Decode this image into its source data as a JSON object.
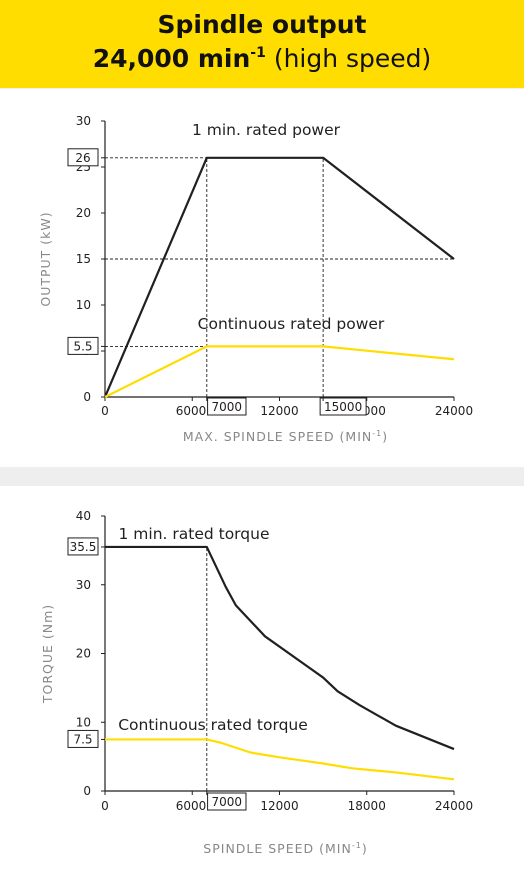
{
  "header": {
    "line1": "Spindle output",
    "line2_value": "24,000 min",
    "line2_sup": "-1",
    "line2_note": "(high speed)"
  },
  "colors": {
    "header_bg": "#ffdd00",
    "rated_line": "#231f20",
    "continuous_line": "#ffdd00",
    "axis_label": "#888888"
  },
  "chart_data": [
    {
      "type": "line",
      "xlabel": "MAX. SPINDLE SPEED (MIN",
      "xlabel_sup": "-1",
      "xlabel_close": ")",
      "ylabel": "OUTPUT (kW)",
      "xlim": [
        0,
        24000
      ],
      "ylim": [
        0,
        30
      ],
      "xticks": [
        "0",
        "6000",
        "12000",
        "18000",
        "24000"
      ],
      "xtick_values": [
        0,
        6000,
        12000,
        18000,
        24000
      ],
      "yticks": [
        "0",
        "5",
        "10",
        "15",
        "20",
        "25",
        "30"
      ],
      "ytick_values": [
        0,
        5,
        10,
        15,
        20,
        25,
        30
      ],
      "boxed_y": [
        {
          "label": "26",
          "value": 26
        },
        {
          "label": "5.5",
          "value": 5.5
        }
      ],
      "boxed_x": [
        {
          "label": "7000",
          "value": 7000
        },
        {
          "label": "15000",
          "value": 15000
        }
      ],
      "series": [
        {
          "name": "1 min. rated power",
          "color": "#231f20",
          "x": [
            0,
            7000,
            15000,
            24000
          ],
          "y": [
            0,
            26,
            26,
            15
          ]
        },
        {
          "name": "Continuous rated power",
          "color": "#ffdd00",
          "x": [
            0,
            7000,
            15000,
            24000
          ],
          "y": [
            0,
            5.5,
            5.5,
            4.1
          ]
        }
      ],
      "reference_lines": [
        {
          "x0": 0,
          "y0": 26,
          "x1": 7000,
          "y1": 26
        },
        {
          "x0": 7000,
          "y0": 0,
          "x1": 7000,
          "y1": 26
        },
        {
          "x0": 15000,
          "y0": 0,
          "x1": 15000,
          "y1": 26
        },
        {
          "x0": 0,
          "y0": 15,
          "x1": 24000,
          "y1": 15
        },
        {
          "x0": 0,
          "y0": 5.5,
          "x1": 7000,
          "y1": 5.5
        }
      ]
    },
    {
      "type": "line",
      "xlabel": "SPINDLE SPEED (MIN",
      "xlabel_sup": "-1",
      "xlabel_close": ")",
      "ylabel": "TORQUE (Nm)",
      "xlim": [
        0,
        24000
      ],
      "ylim": [
        0,
        40
      ],
      "xticks": [
        "0",
        "6000",
        "12000",
        "18000",
        "24000"
      ],
      "xtick_values": [
        0,
        6000,
        12000,
        18000,
        24000
      ],
      "yticks": [
        "0",
        "10",
        "20",
        "30",
        "40"
      ],
      "ytick_values": [
        0,
        10,
        20,
        30,
        40
      ],
      "boxed_y": [
        {
          "label": "35.5",
          "value": 35.5
        },
        {
          "label": "7.5",
          "value": 7.5
        }
      ],
      "boxed_x": [
        {
          "label": "7000",
          "value": 7000
        }
      ],
      "series": [
        {
          "name": "1 min. rated torque",
          "color": "#231f20",
          "x": [
            0,
            7000,
            8300,
            9000,
            11000,
            14000,
            15000,
            16000,
            17500,
            20000,
            24000
          ],
          "y": [
            35.5,
            35.5,
            29.7,
            27.0,
            22.5,
            18.0,
            16.5,
            14.5,
            12.5,
            9.5,
            6.1
          ]
        },
        {
          "name": "Continuous rated torque",
          "color": "#ffdd00",
          "x": [
            0,
            7000,
            8000,
            10000,
            12000,
            14000,
            15000,
            17000,
            20000,
            24000
          ],
          "y": [
            7.5,
            7.5,
            7.0,
            5.6,
            4.9,
            4.3,
            4.0,
            3.3,
            2.7,
            1.7
          ]
        }
      ],
      "reference_lines": [
        {
          "x0": 7000,
          "y0": 0,
          "x1": 7000,
          "y1": 35.5
        }
      ]
    }
  ]
}
